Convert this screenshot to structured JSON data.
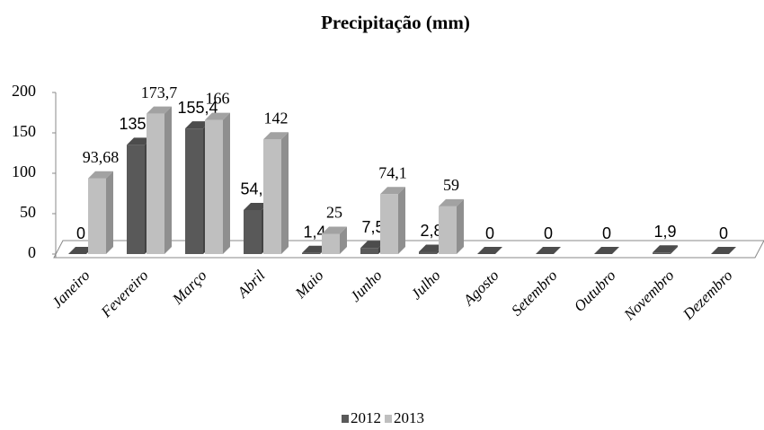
{
  "chart_data": {
    "type": "bar3d",
    "title": "Precipitação (mm)",
    "categories": [
      "Janeiro",
      "Fevereiro",
      "Março",
      "Abril",
      "Maio",
      "Junho",
      "Julho",
      "Agosto",
      "Setembro",
      "Outubro",
      "Novembro",
      "Dezembro"
    ],
    "series": [
      {
        "name": "2012",
        "color": "#595959",
        "values": [
          0,
          135.1,
          155.4,
          54.5,
          1.4,
          7.5,
          2.8,
          0,
          0,
          0,
          1.9,
          0
        ],
        "value_labels": [
          "0",
          "135,1",
          "155,4",
          "54,5",
          "1,4",
          "7,5",
          "2,8",
          "0",
          "0",
          "0",
          "1,9",
          "0"
        ]
      },
      {
        "name": "2013",
        "color": "#bfbfbf",
        "values": [
          93.68,
          173.7,
          166,
          142,
          25,
          74.1,
          59,
          null,
          null,
          null,
          null,
          null
        ],
        "value_labels": [
          "93,68",
          "173,7",
          "166",
          "142",
          "25",
          "74,1",
          "59",
          null,
          null,
          null,
          null,
          null
        ]
      }
    ],
    "ylim": [
      0,
      200
    ],
    "yticks": [
      0,
      50,
      100,
      150,
      200
    ],
    "legend": "bottom"
  }
}
